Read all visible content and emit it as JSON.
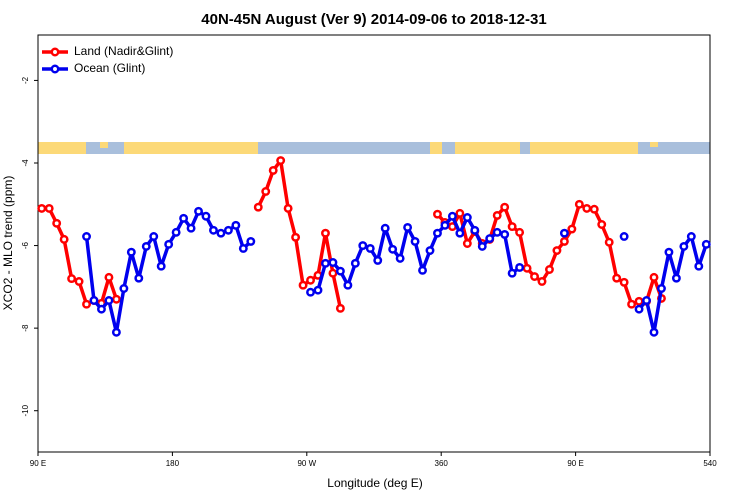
{
  "chart_data": {
    "type": "line",
    "title": "40N-45N August (Ver 9)   2014-09-06 to 2018-12-31",
    "xlabel": "Longitude (deg E)",
    "ylabel": "XCO2 - MLO trend (ppm)",
    "x": [
      92.5,
      97.5,
      102.5,
      107.5,
      112.5,
      117.5,
      122.5,
      127.5,
      132.5,
      137.5,
      142.5,
      147.5,
      152.5,
      157.5,
      162.5,
      167.5,
      172.5,
      177.5,
      182.5,
      187.5,
      192.5,
      197.5,
      202.5,
      207.5,
      212.5,
      217.5,
      222.5,
      227.5,
      232.5,
      237.5,
      242.5,
      247.5,
      252.5,
      257.5,
      262.5,
      267.5,
      272.5,
      277.5,
      282.5,
      287.5,
      292.5,
      297.5,
      302.5,
      307.5,
      312.5,
      317.5,
      322.5,
      327.5,
      332.5,
      337.5,
      342.5,
      347.5,
      352.5,
      357.5,
      362.5,
      367.5,
      372.5,
      377.5,
      382.5,
      387.5,
      392.5,
      397.5,
      402.5,
      407.5,
      412.5,
      417.5,
      422.5,
      427.5,
      432.5,
      437.5,
      442.5,
      447.5,
      452.5,
      457.5,
      462.5,
      467.5,
      472.5,
      477.5,
      482.5,
      487.5,
      492.5,
      497.5,
      502.5,
      507.5,
      512.5,
      517.5,
      522.5,
      527.5,
      532.5,
      537.5
    ],
    "series": [
      {
        "name": "Land (Nadir&Glint)",
        "color": "#ff0000",
        "values": [
          -5.1,
          -5.1,
          -5.46,
          -5.85,
          -6.8,
          -6.87,
          -7.42,
          -7.33,
          -7.4,
          -6.77,
          -7.3,
          null,
          null,
          null,
          null,
          null,
          null,
          null,
          null,
          null,
          null,
          null,
          null,
          null,
          null,
          null,
          null,
          null,
          null,
          -5.07,
          -4.69,
          -4.18,
          -3.94,
          -5.1,
          -5.8,
          -6.96,
          -6.84,
          -6.72,
          -5.7,
          -6.67,
          -7.52,
          null,
          null,
          null,
          null,
          null,
          null,
          null,
          null,
          null,
          null,
          null,
          null,
          -5.24,
          -5.44,
          -5.54,
          -5.22,
          -5.95,
          -5.66,
          -5.95,
          -5.85,
          -5.27,
          -5.07,
          -5.54,
          -5.68,
          -6.55,
          -6.75,
          -6.87,
          -6.58,
          -6.12,
          -5.9,
          -5.6,
          -5.0,
          -5.1,
          -5.12,
          -5.49,
          -5.92,
          -6.79,
          -6.89,
          -7.42,
          -7.35,
          -7.35,
          -6.77,
          -7.28,
          null,
          null,
          null,
          null,
          null,
          null
        ]
      },
      {
        "name": "Ocean (Glint)",
        "color": "#0000ee",
        "values": [
          null,
          null,
          null,
          null,
          null,
          null,
          -5.78,
          -7.33,
          -7.54,
          -7.33,
          -8.1,
          -7.04,
          -6.16,
          -6.79,
          -6.02,
          -5.78,
          -6.5,
          -5.97,
          -5.68,
          -5.34,
          -5.58,
          -5.17,
          -5.29,
          -5.63,
          -5.7,
          -5.63,
          -5.51,
          -6.07,
          -5.9,
          null,
          null,
          null,
          null,
          null,
          null,
          null,
          -7.13,
          -7.08,
          -6.43,
          -6.41,
          -6.62,
          -6.96,
          -6.43,
          -6.0,
          -6.07,
          -6.36,
          -5.58,
          -6.09,
          -6.31,
          -5.56,
          -5.9,
          -6.6,
          -6.12,
          -5.7,
          -5.51,
          -5.29,
          -5.7,
          -5.32,
          -5.63,
          -6.02,
          -5.83,
          -5.68,
          -5.73,
          -6.67,
          -6.53,
          null,
          null,
          null,
          null,
          null,
          -5.7,
          null,
          null,
          null,
          null,
          null,
          null,
          null,
          -5.78,
          null,
          -7.54,
          -7.33,
          -8.1,
          -7.04,
          -6.16,
          -6.79,
          -6.02,
          -5.78,
          -6.5,
          -5.97
        ]
      }
    ],
    "xlim": [
      90,
      540
    ],
    "xticks": [
      {
        "value": 90,
        "label": "90 E"
      },
      180,
      {
        "value": 270,
        "label": "90 W"
      },
      360,
      {
        "value": 450,
        "label": "90 E"
      },
      540
    ],
    "ylim": [
      -11,
      -0.9
    ],
    "yticks": [
      -2,
      -4,
      -6,
      -8,
      -10
    ],
    "legend": "top-left"
  }
}
